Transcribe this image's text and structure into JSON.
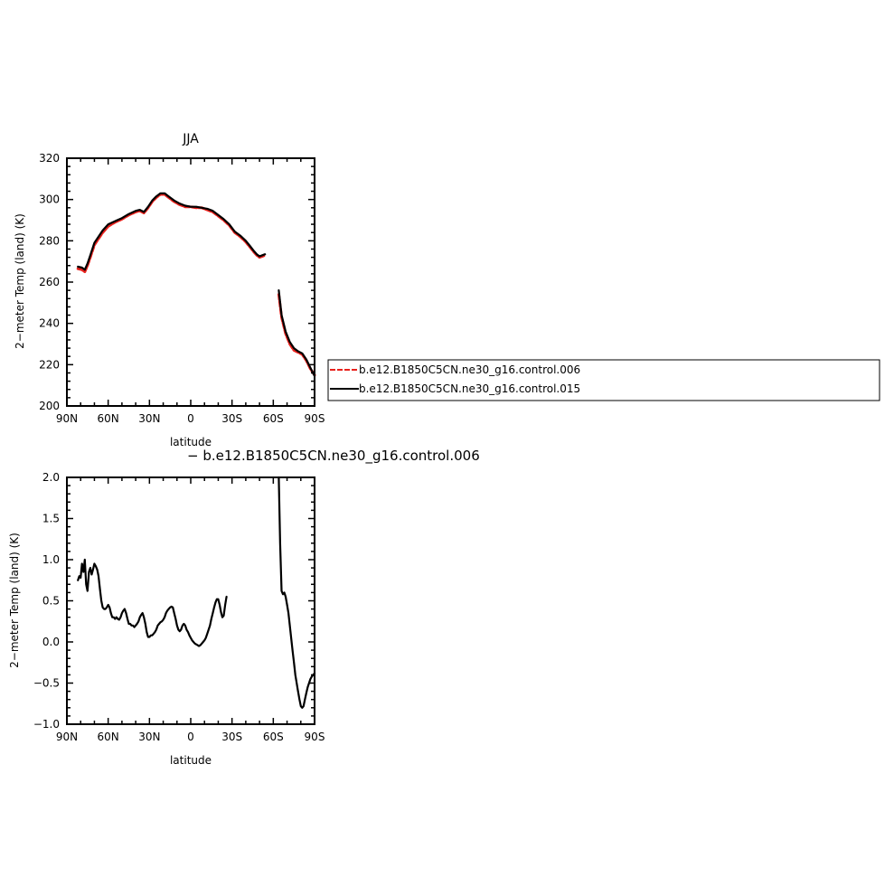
{
  "colors": {
    "series_006": "#e8211c",
    "series_015": "#000000",
    "axis": "#000000"
  },
  "chart_data": [
    {
      "type": "line",
      "title": "JJA",
      "xlabel": "latitude",
      "ylabel": "2−meter Temp (land) (K)",
      "xlim": [
        90,
        -90
      ],
      "ylim": [
        200,
        320
      ],
      "x_ticks": [
        90,
        60,
        30,
        0,
        -30,
        -60,
        -90
      ],
      "x_tick_labels": [
        "90N",
        "60N",
        "30N",
        "0",
        "30S",
        "60S",
        "90S"
      ],
      "y_ticks": [
        200,
        220,
        240,
        260,
        280,
        300,
        320
      ],
      "y_tick_labels": [
        "200",
        "220",
        "240",
        "260",
        "280",
        "300",
        "320"
      ],
      "legend_position": "right",
      "series": [
        {
          "name": "b.e12.B1850C5CN.ne30_g16.control.006",
          "style": "dashed",
          "segments": [
            [
              [
                82,
                266.5
              ],
              [
                79,
                266
              ],
              [
                77,
                265
              ],
              [
                75,
                268
              ],
              [
                73,
                272
              ],
              [
                70,
                278
              ],
              [
                67,
                281
              ],
              [
                64,
                284
              ],
              [
                60,
                287
              ],
              [
                55,
                289
              ],
              [
                50,
                290.5
              ],
              [
                45,
                292.5
              ],
              [
                40,
                294
              ],
              [
                37,
                294.5
              ],
              [
                34,
                293.5
              ],
              [
                31,
                296
              ],
              [
                28,
                299
              ],
              [
                25,
                301
              ],
              [
                22,
                302.5
              ],
              [
                19,
                302.5
              ],
              [
                16,
                301
              ],
              [
                12,
                299
              ],
              [
                8,
                297.5
              ],
              [
                4,
                296.5
              ],
              [
                0,
                296.5
              ],
              [
                -4,
                296
              ],
              [
                -8,
                296
              ],
              [
                -12,
                295
              ],
              [
                -16,
                294
              ],
              [
                -20,
                292
              ],
              [
                -24,
                290
              ],
              [
                -28,
                287.5
              ],
              [
                -32,
                284
              ],
              [
                -36,
                282
              ],
              [
                -40,
                279.5
              ],
              [
                -43,
                277
              ],
              [
                -46,
                274.5
              ],
              [
                -48,
                273
              ],
              [
                -50,
                272
              ],
              [
                -52,
                272.5
              ],
              [
                -54,
                273
              ]
            ],
            [
              [
                -64,
                254
              ],
              [
                -66,
                243
              ],
              [
                -69,
                235
              ],
              [
                -72,
                230
              ],
              [
                -75,
                227
              ],
              [
                -78,
                226
              ],
              [
                -81,
                225
              ],
              [
                -84,
                222
              ],
              [
                -87,
                218
              ],
              [
                -90,
                215
              ]
            ]
          ]
        },
        {
          "name": "b.e12.B1850C5CN.ne30_g16.control.015",
          "style": "solid",
          "segments": [
            [
              [
                82,
                267.5
              ],
              [
                79,
                267
              ],
              [
                77,
                266
              ],
              [
                75,
                269
              ],
              [
                73,
                273
              ],
              [
                70,
                279
              ],
              [
                67,
                282
              ],
              [
                64,
                285
              ],
              [
                60,
                288
              ],
              [
                55,
                289.5
              ],
              [
                50,
                291
              ],
              [
                45,
                293
              ],
              [
                40,
                294.5
              ],
              [
                37,
                295
              ],
              [
                34,
                294
              ],
              [
                31,
                296.5
              ],
              [
                28,
                299.5
              ],
              [
                25,
                301.5
              ],
              [
                22,
                303
              ],
              [
                19,
                303
              ],
              [
                16,
                301.5
              ],
              [
                12,
                299.5
              ],
              [
                8,
                298
              ],
              [
                4,
                297
              ],
              [
                0,
                296.5
              ],
              [
                -4,
                296.5
              ],
              [
                -8,
                296
              ],
              [
                -12,
                295.5
              ],
              [
                -16,
                294.5
              ],
              [
                -20,
                292.5
              ],
              [
                -24,
                290.5
              ],
              [
                -28,
                288
              ],
              [
                -32,
                284.5
              ],
              [
                -36,
                282.5
              ],
              [
                -40,
                280
              ],
              [
                -43,
                277.5
              ],
              [
                -46,
                275
              ],
              [
                -48,
                273.5
              ],
              [
                -50,
                272.5
              ],
              [
                -52,
                273
              ],
              [
                -54,
                273.5
              ]
            ],
            [
              [
                -64,
                256
              ],
              [
                -66,
                244
              ],
              [
                -69,
                236
              ],
              [
                -72,
                231
              ],
              [
                -75,
                228
              ],
              [
                -78,
                226.5
              ],
              [
                -81,
                225.5
              ],
              [
                -84,
                222.5
              ],
              [
                -87,
                218.5
              ],
              [
                -90,
                214.5
              ]
            ]
          ]
        }
      ]
    },
    {
      "type": "line",
      "title": "− b.e12.B1850C5CN.ne30_g16.control.006",
      "xlabel": "latitude",
      "ylabel": "2−meter Temp (land) (K)",
      "xlim": [
        90,
        -90
      ],
      "ylim": [
        -1.0,
        2.0
      ],
      "x_ticks": [
        90,
        60,
        30,
        0,
        -30,
        -60,
        -90
      ],
      "x_tick_labels": [
        "90N",
        "60N",
        "30N",
        "0",
        "30S",
        "60S",
        "90S"
      ],
      "y_ticks": [
        -1.0,
        -0.5,
        0.0,
        0.5,
        1.0,
        1.5,
        2.0
      ],
      "y_tick_labels": [
        "−1.0",
        "−0.5",
        "0.0",
        "0.5",
        "1.0",
        "1.5",
        "2.0"
      ],
      "series": [
        {
          "style": "solid",
          "segments": [
            [
              [
                82,
                0.75
              ],
              [
                81,
                0.8
              ],
              [
                80,
                0.78
              ],
              [
                79,
                0.95
              ],
              [
                78,
                0.85
              ],
              [
                77,
                1.0
              ],
              [
                76,
                0.7
              ],
              [
                75,
                0.62
              ],
              [
                74,
                0.85
              ],
              [
                73,
                0.9
              ],
              [
                72,
                0.82
              ],
              [
                71,
                0.88
              ],
              [
                70,
                0.95
              ],
              [
                69,
                0.92
              ],
              [
                68,
                0.88
              ],
              [
                67,
                0.8
              ],
              [
                66,
                0.65
              ],
              [
                65,
                0.5
              ],
              [
                64,
                0.42
              ],
              [
                63,
                0.4
              ],
              [
                62,
                0.4
              ],
              [
                61,
                0.42
              ],
              [
                60,
                0.45
              ],
              [
                59,
                0.42
              ],
              [
                58,
                0.35
              ],
              [
                57,
                0.3
              ],
              [
                56,
                0.3
              ],
              [
                55,
                0.28
              ],
              [
                54,
                0.3
              ],
              [
                53,
                0.28
              ],
              [
                52,
                0.27
              ],
              [
                51,
                0.3
              ],
              [
                50,
                0.35
              ],
              [
                49,
                0.38
              ],
              [
                48,
                0.4
              ],
              [
                47,
                0.35
              ],
              [
                46,
                0.28
              ],
              [
                45,
                0.22
              ],
              [
                44,
                0.22
              ],
              [
                43,
                0.2
              ],
              [
                42,
                0.2
              ],
              [
                41,
                0.18
              ],
              [
                40,
                0.2
              ],
              [
                39,
                0.22
              ],
              [
                38,
                0.25
              ],
              [
                37,
                0.3
              ],
              [
                36,
                0.33
              ],
              [
                35,
                0.35
              ],
              [
                34,
                0.3
              ],
              [
                33,
                0.22
              ],
              [
                32,
                0.12
              ],
              [
                31,
                0.06
              ],
              [
                30,
                0.06
              ],
              [
                29,
                0.08
              ],
              [
                28,
                0.08
              ],
              [
                27,
                0.1
              ],
              [
                26,
                0.12
              ],
              [
                25,
                0.15
              ],
              [
                24,
                0.2
              ],
              [
                23,
                0.22
              ],
              [
                22,
                0.24
              ],
              [
                21,
                0.25
              ],
              [
                20,
                0.27
              ],
              [
                19,
                0.3
              ],
              [
                18,
                0.35
              ],
              [
                17,
                0.38
              ],
              [
                16,
                0.4
              ],
              [
                15,
                0.42
              ],
              [
                14,
                0.43
              ],
              [
                13,
                0.42
              ],
              [
                12,
                0.35
              ],
              [
                11,
                0.28
              ],
              [
                10,
                0.2
              ],
              [
                9,
                0.15
              ],
              [
                8,
                0.13
              ],
              [
                7,
                0.15
              ],
              [
                6,
                0.2
              ],
              [
                5,
                0.22
              ],
              [
                4,
                0.2
              ],
              [
                3,
                0.15
              ],
              [
                2,
                0.12
              ],
              [
                1,
                0.08
              ],
              [
                0,
                0.05
              ],
              [
                -1,
                0.02
              ],
              [
                -2,
                0.0
              ],
              [
                -3,
                -0.02
              ],
              [
                -4,
                -0.03
              ],
              [
                -5,
                -0.04
              ],
              [
                -6,
                -0.05
              ],
              [
                -7,
                -0.04
              ],
              [
                -8,
                -0.02
              ],
              [
                -9,
                0.0
              ],
              [
                -10,
                0.02
              ],
              [
                -11,
                0.05
              ],
              [
                -12,
                0.1
              ],
              [
                -13,
                0.15
              ],
              [
                -14,
                0.2
              ],
              [
                -15,
                0.28
              ],
              [
                -16,
                0.35
              ],
              [
                -17,
                0.42
              ],
              [
                -18,
                0.48
              ],
              [
                -19,
                0.52
              ],
              [
                -20,
                0.52
              ],
              [
                -21,
                0.45
              ],
              [
                -22,
                0.36
              ],
              [
                -23,
                0.3
              ],
              [
                -24,
                0.32
              ],
              [
                -25,
                0.45
              ],
              [
                -26,
                0.55
              ]
            ],
            [
              [
                -64,
                2.0
              ],
              [
                -65,
                1.2
              ],
              [
                -66,
                0.62
              ],
              [
                -67,
                0.58
              ],
              [
                -68,
                0.6
              ],
              [
                -69,
                0.55
              ],
              [
                -70,
                0.45
              ],
              [
                -71,
                0.35
              ],
              [
                -72,
                0.2
              ],
              [
                -73,
                0.05
              ],
              [
                -74,
                -0.1
              ],
              [
                -75,
                -0.25
              ],
              [
                -76,
                -0.4
              ],
              [
                -77,
                -0.5
              ],
              [
                -78,
                -0.6
              ],
              [
                -79,
                -0.7
              ],
              [
                -80,
                -0.78
              ],
              [
                -81,
                -0.8
              ],
              [
                -82,
                -0.78
              ],
              [
                -83,
                -0.7
              ],
              [
                -84,
                -0.62
              ],
              [
                -85,
                -0.55
              ],
              [
                -86,
                -0.5
              ],
              [
                -87,
                -0.45
              ],
              [
                -88,
                -0.42
              ],
              [
                -89,
                -0.4
              ],
              [
                -90,
                -0.38
              ]
            ]
          ]
        }
      ]
    }
  ]
}
